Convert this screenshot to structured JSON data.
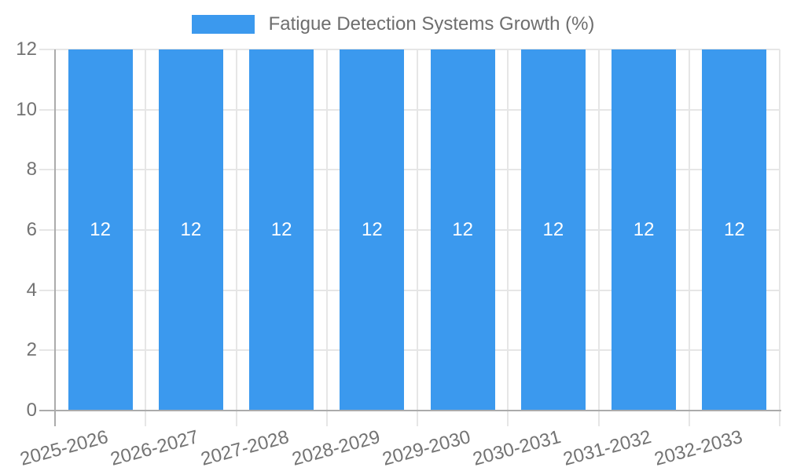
{
  "chart_data": {
    "type": "bar",
    "title": "Fatigue Detection Systems Growth (%)",
    "categories": [
      "2025-2026",
      "2026-2027",
      "2027-2028",
      "2028-2029",
      "2029-2030",
      "2030-2031",
      "2031-2032",
      "2032-2033"
    ],
    "values": [
      12,
      12,
      12,
      12,
      12,
      12,
      12,
      12
    ],
    "bar_value_labels": [
      "12",
      "12",
      "12",
      "12",
      "12",
      "12",
      "12",
      "12"
    ],
    "y_ticks": [
      0,
      2,
      4,
      6,
      8,
      10,
      12
    ],
    "ylim": [
      0,
      12
    ],
    "xlabel": "",
    "ylabel": "",
    "legend_position": "top",
    "grid": true,
    "x_label_rotation_deg": -15,
    "colors": {
      "bar": "#3B99EE",
      "bar_label": "#ffffff",
      "grid": "#e6e6e6",
      "axis": "#ababab",
      "tick_label": "#737373",
      "legend_label": "#6e6e6e",
      "background": "#ffffff"
    }
  }
}
